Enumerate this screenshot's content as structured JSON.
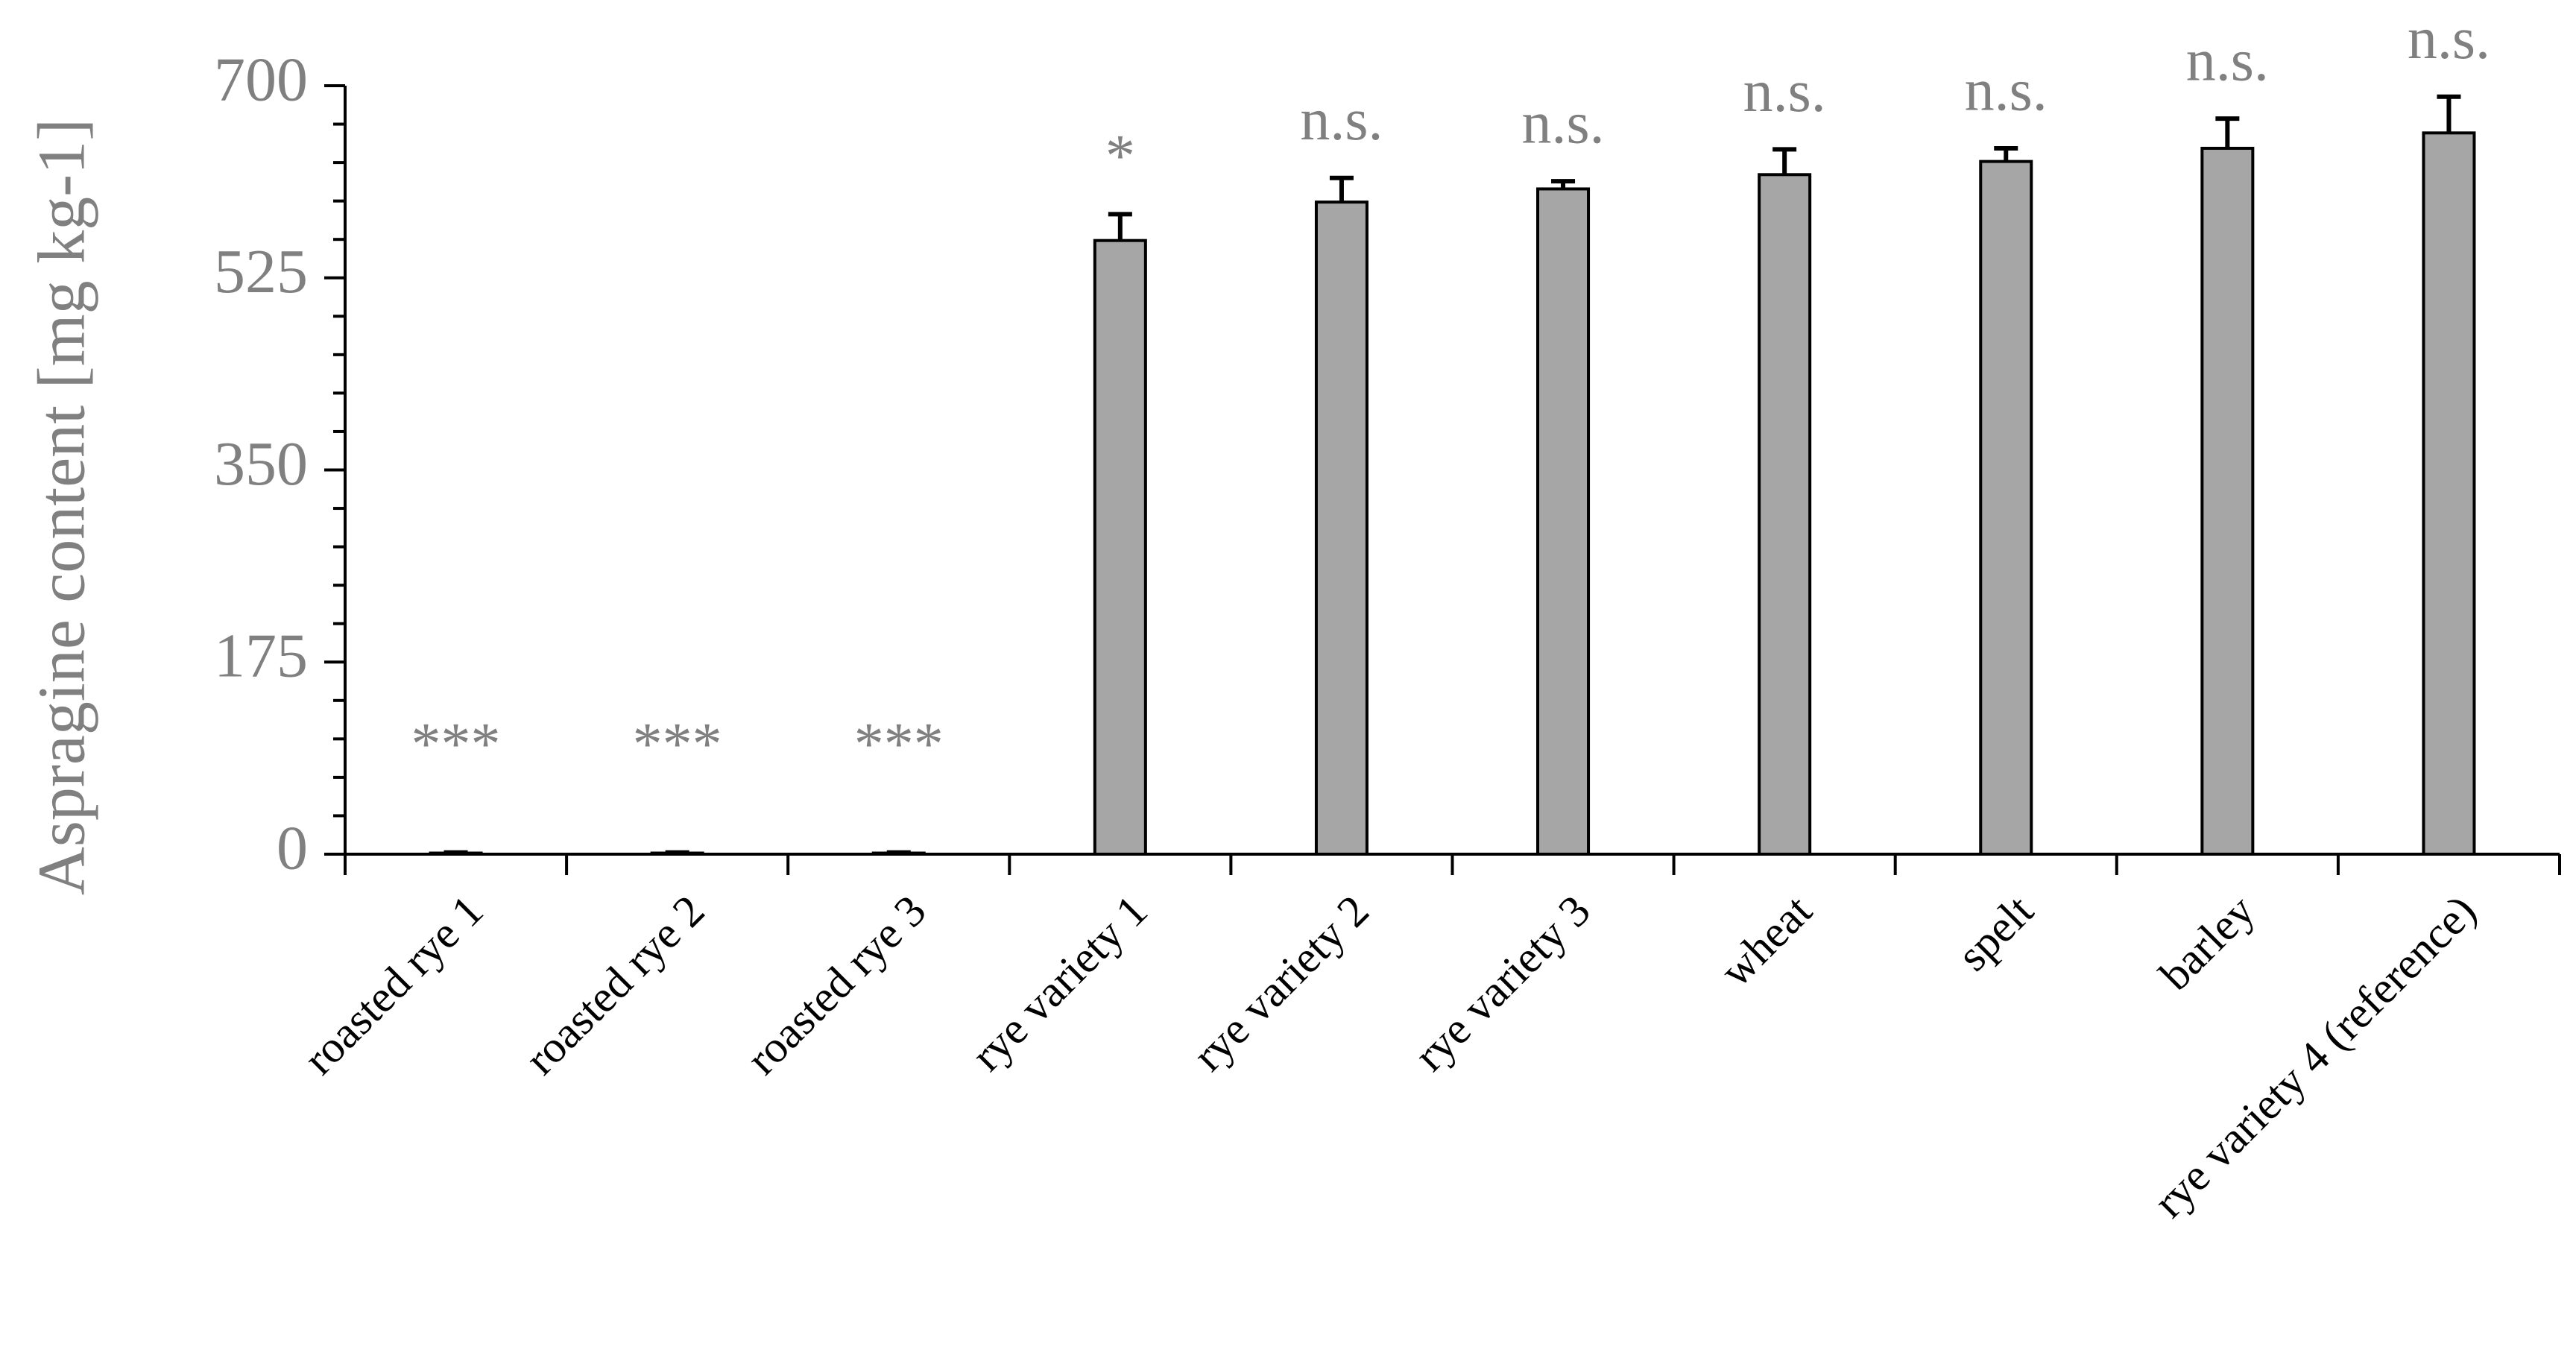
{
  "chart_data": {
    "type": "bar",
    "y_label": "Aspragine content [mg kg-1]",
    "categories": [
      "roasted rye 1",
      "roasted rye 2",
      "roasted rye 3",
      "rye variety 1",
      "rye variety 2",
      "rye variety 3",
      "wheat",
      "spelt",
      "barley",
      "rye variety 4 (reference)"
    ],
    "values": [
      1,
      1,
      1,
      559,
      594,
      606,
      619,
      631,
      643,
      657
    ],
    "errors": [
      0.5,
      0.5,
      0.5,
      24,
      22,
      7,
      23,
      12,
      27,
      33
    ],
    "annotations": [
      "***",
      "***",
      "***",
      "*",
      "n.s.",
      "n.s.",
      "n.s.",
      "n.s.",
      "n.s.",
      "n.s."
    ],
    "color": "#a6a6a6",
    "ylim": [
      0,
      700
    ],
    "yticks": [
      0,
      175,
      350,
      525,
      700
    ],
    "yminorticks": [
      35,
      70,
      105,
      140,
      210,
      245,
      280,
      315,
      385,
      420,
      455,
      490,
      560,
      595,
      630,
      665
    ]
  }
}
